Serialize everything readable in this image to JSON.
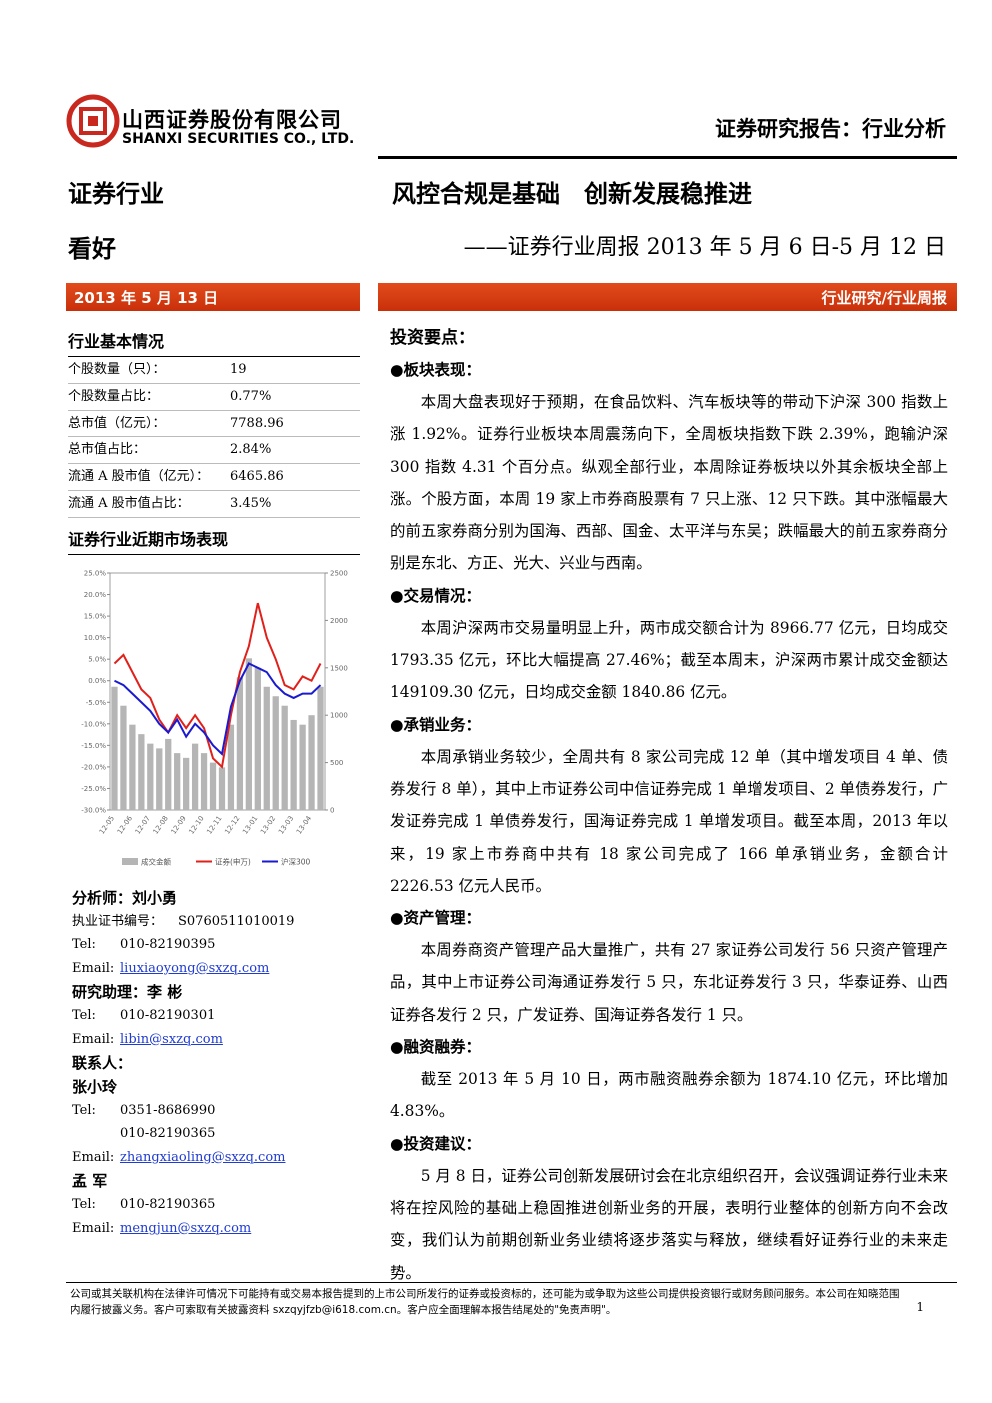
{
  "header": {
    "company_cn": "山西证券股份有限公司",
    "company_en": "SHANXI SECURITIES CO., LTD.",
    "report_type": "证券研究报告：行业分析"
  },
  "sidebar": {
    "industry": "证券行业",
    "rating": "看好",
    "date": "2013 年 5 月 13 日",
    "basic_title": "行业基本情况",
    "basic_rows": [
      [
        "个股数量（只）：",
        "19"
      ],
      [
        "个股数量占比：",
        "0.77%"
      ],
      [
        "总市值（亿元）：",
        "7788.96"
      ],
      [
        "总市值占比：",
        "2.84%"
      ],
      [
        "流通 A 股市值（亿元）：",
        "6465.86"
      ],
      [
        "流通 A 股市值占比：",
        "3.45%"
      ]
    ],
    "chart_title": "证券行业近期市场表现",
    "contacts": [
      {
        "heading": "分析师：刘小勇",
        "lines": [
          {
            "label": "执业证书编号：",
            "value": "S0760511010019"
          },
          {
            "label": "Tel:",
            "value": "010-82190395"
          },
          {
            "label": "Email:",
            "value": "liuxiaoyong@sxzq.com"
          }
        ]
      },
      {
        "heading": "研究助理：李  彬",
        "lines": [
          {
            "label": "Tel:",
            "value": "010-82190301"
          },
          {
            "label": "Email:",
            "value": "libin@sxzq.com"
          }
        ]
      },
      {
        "heading": "联系人：",
        "lines": []
      },
      {
        "heading": "张小玲",
        "lines": [
          {
            "label": "Tel:",
            "value": "0351-8686990"
          },
          {
            "label": "",
            "value": "010-82190365"
          },
          {
            "label": "Email:",
            "value": "zhangxiaoling@sxzq.com"
          }
        ]
      },
      {
        "heading": "孟  军",
        "lines": [
          {
            "label": "Tel:",
            "value": "010-82190365"
          },
          {
            "label": "Email:",
            "value": "mengjun@sxzq.com"
          }
        ]
      }
    ]
  },
  "chart_data": {
    "type": "bar-line",
    "categories": [
      "12-05",
      null,
      "12-06",
      null,
      "12-07",
      null,
      "12-08",
      null,
      "12-09",
      null,
      "12-10",
      null,
      "12-11",
      null,
      "12-12",
      null,
      "13-01",
      null,
      "13-02",
      null,
      "13-03",
      null,
      "13-04",
      null
    ],
    "ylim": [
      -30,
      25
    ],
    "yticks": [
      {
        "value": -30,
        "label": "-30.0%"
      },
      {
        "value": -25,
        "label": "-25.0%"
      },
      {
        "value": -20,
        "label": "-20.0%"
      },
      {
        "value": -15,
        "label": "-15.0%"
      },
      {
        "value": -10,
        "label": "-10.0%"
      },
      {
        "value": -5,
        "label": "-5.0%"
      },
      {
        "value": 0,
        "label": "0.0%"
      },
      {
        "value": 5,
        "label": "5.0%"
      },
      {
        "value": 10,
        "label": "10.0%"
      },
      {
        "value": 15,
        "label": "15.0%"
      },
      {
        "value": 20,
        "label": "20.0%"
      },
      {
        "value": 25,
        "label": "25.0%"
      }
    ],
    "y2lim": [
      0,
      2500
    ],
    "y2ticks": [
      0,
      500,
      1000,
      1500,
      2000,
      2500
    ],
    "series": [
      {
        "name": "成交金额",
        "type": "bar",
        "axis": "y2",
        "color": "#b5b5b5",
        "values": [
          1300,
          1100,
          900,
          800,
          700,
          650,
          750,
          600,
          550,
          700,
          600,
          500,
          450,
          900,
          1400,
          1600,
          1500,
          1300,
          1200,
          1100,
          950,
          900,
          1000,
          1300
        ]
      },
      {
        "name": "证券(申万)",
        "type": "line",
        "color": "#e0201b",
        "values": [
          4,
          6,
          2,
          -2,
          -4,
          -9,
          -12,
          -8,
          -11,
          -8,
          -11,
          -18,
          -20,
          -8,
          2,
          8,
          18,
          10,
          5,
          -1,
          -2,
          1,
          0,
          4
        ]
      },
      {
        "name": "沪深300",
        "type": "line",
        "color": "#1a1ad0",
        "values": [
          0,
          -1,
          -3,
          -5,
          -7,
          -10,
          -12,
          -9,
          -13,
          -10,
          -12,
          -15,
          -17,
          -6,
          0,
          4,
          3,
          2,
          -1,
          -3,
          -4,
          -3,
          -3,
          -1
        ]
      }
    ]
  },
  "main": {
    "title": "风控合规是基础　创新发展稳推进",
    "subtitle": "——证券行业周报 2013 年 5 月 6 日-5 月 12 日",
    "category": "行业研究/行业周报",
    "key_points": "投资要点：",
    "sections": [
      {
        "heading": "●板块表现：",
        "text": "本周大盘表现好于预期，在食品饮料、汽车板块等的带动下沪深 300 指数上涨 1.92%。证券行业板块本周震荡向下，全周板块指数下跌 2.39%，跑输沪深 300 指数 4.31 个百分点。纵观全部行业，本周除证券板块以外其余板块全部上涨。个股方面，本周 19 家上市券商股票有 7 只上涨、12 只下跌。其中涨幅最大的前五家券商分别为国海、西部、国金、太平洋与东吴；跌幅最大的前五家券商分别是东北、方正、光大、兴业与西南。"
      },
      {
        "heading": "●交易情况：",
        "text": "本周沪深两市交易量明显上升，两市成交额合计为 8966.77 亿元，日均成交 1793.35 亿元，环比大幅提高 27.46%；截至本周末，沪深两市累计成交金额达 149109.30 亿元，日均成交金额 1840.86 亿元。"
      },
      {
        "heading": "●承销业务：",
        "text": "本周承销业务较少，全周共有 8 家公司完成 12 单（其中增发项目 4 单、债券发行 8 单），其中上市证券公司中信证券完成 1 单增发项目、2 单债券发行，广发证券完成 1 单债券发行，国海证券完成 1 单增发项目。截至本周，2013 年以来，19 家上市券商中共有 18 家公司完成了 166 单承销业务，金额合计 2226.53 亿元人民币。"
      },
      {
        "heading": "●资产管理：",
        "text": "本周券商资产管理产品大量推广，共有 27 家证券公司发行 56 只资产管理产品，其中上市证券公司海通证券发行 5 只，东北证券发行 3 只，华泰证券、山西证券各发行 2 只，广发证券、国海证券各发行 1 只。"
      },
      {
        "heading": "●融资融券：",
        "text": "截至 2013 年 5 月 10 日，两市融资融券余额为 1874.10 亿元，环比增加 4.83%。"
      },
      {
        "heading": "●投资建议：",
        "text": "5 月 8 日，证券公司创新发展研讨会在北京组织召开，会议强调证券行业未来将在控风险的基础上稳固推进创新业务的开展，表明行业整体的创新方向不会改变，我们认为前期创新业务业绩将逐步落实与释放，继续看好证券行业的未来走势。"
      }
    ]
  },
  "footer": {
    "disclaimer": "公司或其关联机构在法律许可情况下可能持有或交易本报告提到的上市公司所发行的证券或投资标的，还可能为或争取为这些公司提供投资银行或财务顾问服务。本公司在知晓范围内履行披露义务。客户可索取有关披露资料 sxzqyjfzb@i618.com.cn。客户应全面理解本报告结尾处的\"免责声明\"。",
    "page": "1"
  }
}
